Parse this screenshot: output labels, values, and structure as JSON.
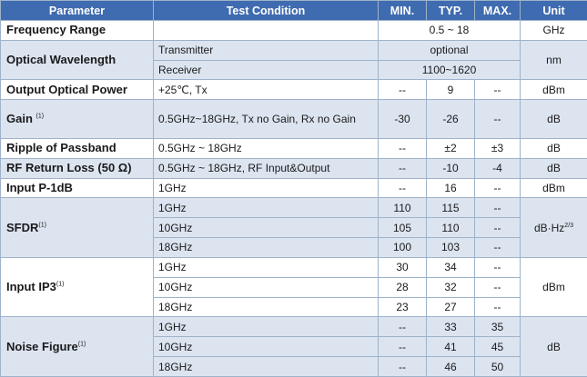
{
  "headers": {
    "parameter": "Parameter",
    "condition": "Test Condition",
    "min": "MIN.",
    "typ": "TYP.",
    "max": "MAX.",
    "unit": "Unit"
  },
  "frequency_range": {
    "param": "Frequency Range",
    "value": "0.5 ~ 18",
    "unit": "GHz"
  },
  "optical_wavelength": {
    "param": "Optical Wavelength",
    "unit": "nm",
    "rows": [
      {
        "cond": "Transmitter",
        "value": "optional"
      },
      {
        "cond": "Receiver",
        "value": "1100~1620"
      }
    ]
  },
  "output_optical_power": {
    "param": "Output Optical Power",
    "cond": "+25℃,  Tx",
    "min": "--",
    "typ": "9",
    "max": "--",
    "unit": "dBm"
  },
  "gain": {
    "param": "Gain",
    "note": "(1)",
    "cond": "0.5GHz~18GHz,  Tx no Gain, Rx no Gain",
    "min": "-30",
    "typ": "-26",
    "max": "--",
    "unit": "dB"
  },
  "ripple": {
    "param": "Ripple of Passband",
    "cond": "0.5GHz ~ 18GHz",
    "min": "--",
    "typ": "±2",
    "max": "±3",
    "unit": "dB"
  },
  "rf_return_loss": {
    "param": "RF Return Loss (50 Ω)",
    "cond": "0.5GHz ~ 18GHz,  RF Input&Output",
    "min": "--",
    "typ": "-10",
    "max": "-4",
    "unit": "dB"
  },
  "input_p1db": {
    "param": "Input P-1dB",
    "cond": "1GHz",
    "min": "--",
    "typ": "16",
    "max": "--",
    "unit": "dBm"
  },
  "sfdr": {
    "param": "SFDR",
    "note": "(1)",
    "unit": "dB·Hz",
    "unit_sup": "2/3",
    "rows": [
      {
        "cond": "1GHz",
        "min": "110",
        "typ": "115",
        "max": "--"
      },
      {
        "cond": "10GHz",
        "min": "105",
        "typ": "110",
        "max": "--"
      },
      {
        "cond": "18GHz",
        "min": "100",
        "typ": "103",
        "max": "--"
      }
    ]
  },
  "input_ip3": {
    "param": "Input IP3",
    "note": "(1)",
    "unit": "dBm",
    "rows": [
      {
        "cond": "1GHz",
        "min": "30",
        "typ": "34",
        "max": "--"
      },
      {
        "cond": "10GHz",
        "min": "28",
        "typ": "32",
        "max": "--"
      },
      {
        "cond": "18GHz",
        "min": "23",
        "typ": "27",
        "max": "--"
      }
    ]
  },
  "noise_figure": {
    "param": "Noise Figure",
    "note": "(1)",
    "unit": "dB",
    "rows": [
      {
        "cond": "1GHz",
        "min": "--",
        "typ": "33",
        "max": "35"
      },
      {
        "cond": "10GHz",
        "min": "--",
        "typ": "41",
        "max": "45"
      },
      {
        "cond": "18GHz",
        "min": "--",
        "typ": "46",
        "max": "50"
      }
    ]
  }
}
